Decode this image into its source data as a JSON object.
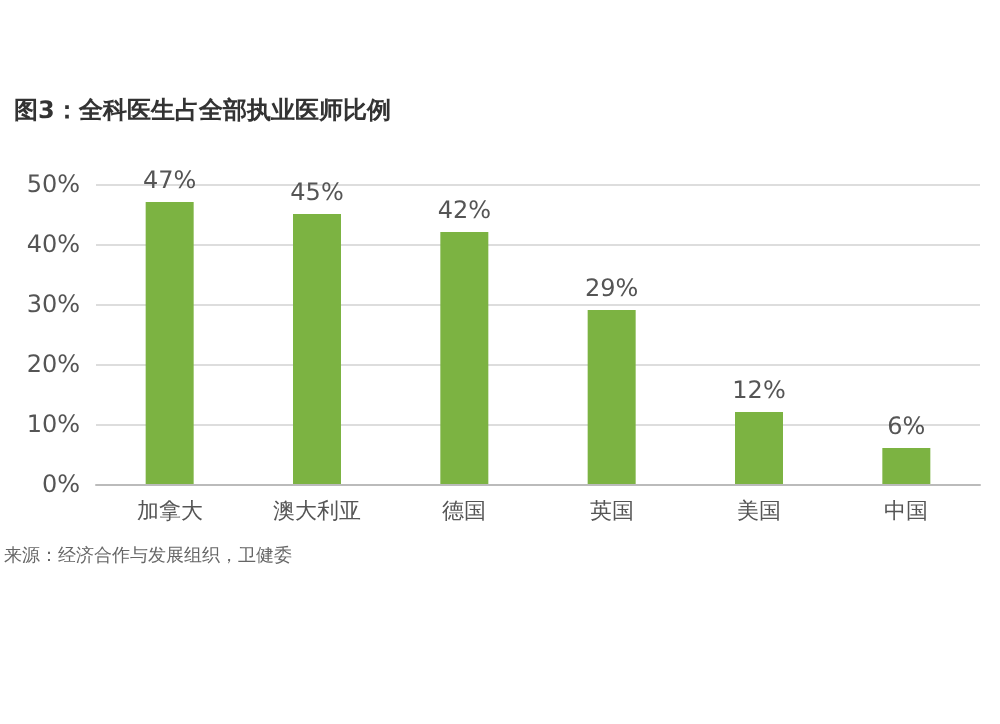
{
  "chart_data": {
    "type": "bar",
    "title": "图3：全科医生占全部执业医师比例",
    "categories": [
      "加拿大",
      "澳大利亚",
      "德国",
      "英国",
      "美国",
      "中国"
    ],
    "values": [
      47,
      45,
      42,
      29,
      12,
      6
    ],
    "value_labels": [
      "47%",
      "45%",
      "42%",
      "29%",
      "12%",
      "6%"
    ],
    "color": "#7cb342",
    "ylim": [
      0,
      50
    ],
    "yticks": [
      {
        "value": 0,
        "label": "0%"
      },
      {
        "value": 10,
        "label": "10%"
      },
      {
        "value": 20,
        "label": "20%"
      },
      {
        "value": 30,
        "label": "30%"
      },
      {
        "value": 40,
        "label": "40%"
      },
      {
        "value": 50,
        "label": "50%"
      }
    ],
    "grid": "y",
    "annotations": [
      "来源：经济合作与发展组织，卫健委"
    ]
  }
}
